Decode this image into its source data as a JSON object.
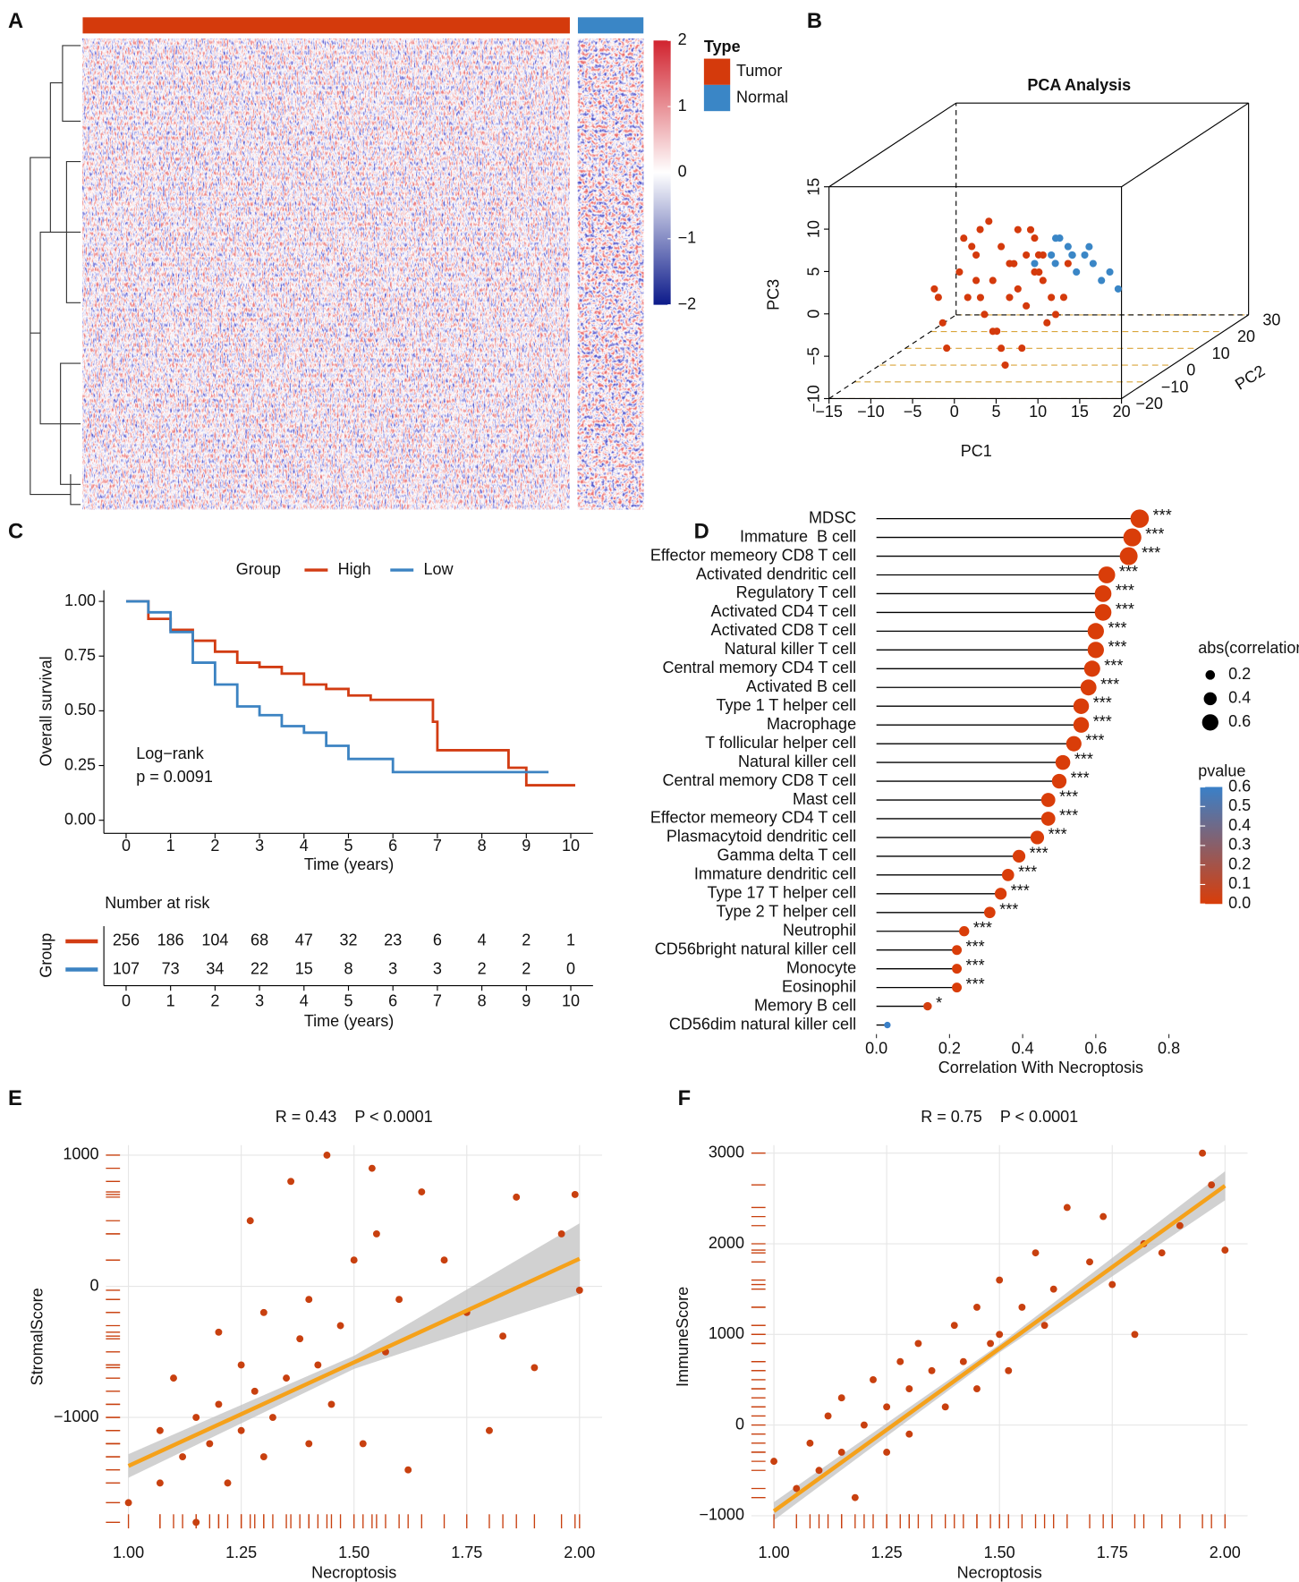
{
  "chart_data": [
    {
      "type": "heatmap",
      "panel": "A",
      "colorbar_lim": [
        -2,
        2
      ],
      "colorbar_ticks": [
        {
          "value": -2,
          "label": "−2"
        },
        {
          "value": -1,
          "label": "−1"
        },
        0,
        1,
        2
      ],
      "colors": [
        "#0c1a8a",
        "#ffffff",
        "#d1232f"
      ],
      "legend_title": "Type",
      "groups": [
        {
          "name": "Tumor",
          "color": "#d43a0c"
        },
        {
          "name": "Normal",
          "color": "#3a86c6"
        }
      ]
    },
    {
      "type": "scatter3d",
      "panel": "B",
      "title": "PCA Analysis",
      "xlabel": "PC1",
      "ylabel": "PC2",
      "zlabel": "PC3",
      "xlim": [
        -15,
        20
      ],
      "ylim": [
        -20,
        30
      ],
      "zlim": [
        -10,
        15
      ],
      "xticks": [
        {
          "value": -15,
          "label": "−15"
        },
        {
          "value": -10,
          "label": "−10"
        },
        {
          "value": -5,
          "label": "−5"
        },
        0,
        5,
        10,
        15,
        20
      ],
      "yticks": [
        {
          "value": -20,
          "label": "−20"
        },
        {
          "value": -10,
          "label": "−10"
        },
        0,
        10,
        20,
        30
      ],
      "zticks": [
        {
          "value": -10,
          "label": "−10"
        },
        {
          "value": -5,
          "label": "−5"
        },
        0,
        5,
        10,
        15
      ],
      "grid_color": "#d9a53a",
      "series": [
        {
          "name": "Tumor",
          "color": "#d43a0c",
          "x": [
            -3,
            -5,
            -1,
            0,
            -6,
            -2,
            1,
            -4,
            2,
            -7,
            -3,
            0,
            -8,
            3,
            -1,
            -5,
            2,
            4,
            -9,
            -2,
            5,
            -4,
            1,
            -6,
            6,
            -3,
            0,
            3,
            -7,
            2,
            -10,
            -1,
            4,
            -5,
            1,
            7,
            -2,
            0,
            -8,
            3
          ],
          "y": [
            5,
            5,
            5,
            5,
            5,
            5,
            5,
            5,
            5,
            5,
            5,
            10,
            0,
            5,
            0,
            10,
            0,
            5,
            5,
            5,
            0,
            0,
            10,
            10,
            5,
            0,
            5,
            10,
            0,
            5,
            5,
            5,
            0,
            5,
            5,
            0,
            10,
            0,
            10,
            5
          ],
          "z": [
            -1,
            2,
            1,
            -2,
            -3,
            3,
            -4,
            -5,
            0,
            0,
            -7,
            4,
            -2,
            2,
            -6,
            5,
            -8,
            -3,
            -6,
            -9,
            -5,
            4,
            -1,
            -4,
            1,
            6,
            5,
            -6,
            -8,
            4,
            -2,
            -3,
            3,
            -1,
            2,
            -2,
            0,
            -10,
            3,
            -1
          ]
        },
        {
          "name": "Normal",
          "color": "#3a86c6",
          "x": [
            4,
            6,
            5,
            7,
            8,
            3,
            9,
            6,
            10,
            5,
            7,
            11,
            2,
            8,
            12
          ],
          "y": [
            5,
            5,
            10,
            5,
            5,
            10,
            5,
            0,
            5,
            5,
            10,
            5,
            5,
            0,
            5
          ],
          "z": [
            2,
            3,
            1,
            0,
            2,
            3,
            1,
            2,
            -1,
            4,
            2,
            0,
            1,
            3,
            -2
          ]
        }
      ]
    },
    {
      "type": "km",
      "panel": "C",
      "xlabel": "Time (years)",
      "ylabel": "Overall survival",
      "legend_title": "Group",
      "xlim": [
        -0.5,
        10.5
      ],
      "ylim": [
        0,
        1
      ],
      "xticks": [
        0,
        1,
        2,
        3,
        4,
        5,
        6,
        7,
        8,
        9,
        10
      ],
      "yticks": [
        {
          "value": 0,
          "label": "0.00"
        },
        {
          "value": 0.25,
          "label": "0.25"
        },
        {
          "value": 0.5,
          "label": "0.50"
        },
        {
          "value": 0.75,
          "label": "0.75"
        },
        {
          "value": 1,
          "label": "1.00"
        }
      ],
      "annotation": [
        "Log−rank",
        "p = 0.0091"
      ],
      "risk_title": "Number at risk",
      "risk_ylabel": "Group",
      "risk_xlabel": "Time (years)",
      "series": [
        {
          "name": "High",
          "color": "#d23c13",
          "x": [
            0,
            0.5,
            1,
            1.5,
            2,
            2.5,
            3,
            3.5,
            4,
            4.5,
            5,
            5.5,
            6.9,
            7,
            8.6,
            9,
            10.1
          ],
          "values": [
            1,
            0.92,
            0.87,
            0.82,
            0.77,
            0.72,
            0.7,
            0.67,
            0.62,
            0.6,
            0.57,
            0.55,
            0.45,
            0.32,
            0.24,
            0.16,
            0.16
          ],
          "at_risk": [
            256,
            186,
            104,
            68,
            47,
            32,
            23,
            6,
            4,
            2,
            1
          ]
        },
        {
          "name": "Low",
          "color": "#3c83c2",
          "x": [
            0,
            0.5,
            1,
            1.5,
            2,
            2.5,
            3,
            3.5,
            4,
            4.5,
            5,
            6,
            9.5
          ],
          "values": [
            1,
            0.95,
            0.86,
            0.72,
            0.62,
            0.52,
            0.48,
            0.43,
            0.4,
            0.34,
            0.28,
            0.22,
            0.22
          ],
          "at_risk": [
            107,
            73,
            34,
            22,
            15,
            8,
            3,
            3,
            2,
            2,
            0
          ]
        }
      ]
    },
    {
      "type": "lollipop",
      "panel": "D",
      "xlabel": "Correlation With Necroptosis",
      "xlim": [
        0,
        0.8
      ],
      "xticks": [
        {
          "value": 0,
          "label": "0.0"
        },
        0.2,
        0.4,
        0.6,
        0.8
      ],
      "categories": [
        "MDSC",
        "Immature  B cell",
        "Effector memeory CD8 T cell",
        "Activated dendritic cell",
        "Regulatory T cell",
        "Activated CD4 T cell",
        "Activated CD8 T cell",
        "Natural killer T cell",
        "Central memory CD4 T cell",
        "Activated B cell",
        "Type 1 T helper cell",
        "Macrophage",
        "T follicular helper cell",
        "Natural killer cell",
        "Central memory CD8 T cell",
        "Mast cell",
        "Effector memeory CD4 T cell",
        "Plasmacytoid dendritic cell",
        "Gamma delta T cell",
        "Immature dendritic cell",
        "Type 17 T helper cell",
        "Type 2 T helper cell",
        "Neutrophil",
        "CD56bright natural killer cell",
        "Monocyte",
        "Eosinophil",
        "Memory B cell",
        "CD56dim natural killer cell"
      ],
      "values": [
        0.72,
        0.7,
        0.69,
        0.63,
        0.62,
        0.62,
        0.6,
        0.6,
        0.59,
        0.58,
        0.56,
        0.56,
        0.54,
        0.51,
        0.5,
        0.47,
        0.47,
        0.44,
        0.39,
        0.36,
        0.34,
        0.31,
        0.24,
        0.22,
        0.22,
        0.22,
        0.14,
        0.03
      ],
      "pvalues": [
        0,
        0,
        0,
        0,
        0,
        0,
        0,
        0,
        0,
        0,
        0,
        0,
        0,
        0,
        0,
        0,
        0,
        0,
        0,
        0,
        0,
        0,
        0,
        0,
        0,
        0,
        0.02,
        0.6
      ],
      "significance": [
        "***",
        "***",
        "***",
        "***",
        "***",
        "***",
        "***",
        "***",
        "***",
        "***",
        "***",
        "***",
        "***",
        "***",
        "***",
        "***",
        "***",
        "***",
        "***",
        "***",
        "***",
        "***",
        "***",
        "***",
        "***",
        "***",
        "*",
        null
      ],
      "size_legend_title": "abs(correlation)",
      "size_legend": [
        0.2,
        0.4,
        0.6
      ],
      "color_legend_title": "pvalue",
      "color_lim": [
        0,
        0.6
      ],
      "color_ticks": [
        {
          "value": 0,
          "label": "0.0"
        },
        0.1,
        0.2,
        0.3,
        0.4,
        0.5,
        0.6
      ],
      "color_low": "#d93d09",
      "color_high": "#3a80c8"
    },
    {
      "type": "scatter",
      "panel": "E",
      "title": "R = 0.43    P < 0.0001",
      "xlabel": "Necroptosis",
      "ylabel": "StromalScore",
      "xlim": [
        0.95,
        2.05
      ],
      "ylim": [
        -1846,
        1077
      ],
      "xticks": [
        {
          "value": 1,
          "label": "1.00"
        },
        1.25,
        {
          "value": 1.5,
          "label": "1.50"
        },
        1.75,
        {
          "value": 2,
          "label": "2.00"
        }
      ],
      "yticks": [
        {
          "value": -1000,
          "label": "−1000"
        },
        0,
        1000
      ],
      "grid": true,
      "point_color": "#c8400f",
      "line_color": "#f5a11a",
      "band_color": "#bdbdbd",
      "x": [
        1.0,
        1.07,
        1.07,
        1.1,
        1.12,
        1.15,
        1.15,
        1.18,
        1.2,
        1.2,
        1.22,
        1.25,
        1.25,
        1.27,
        1.28,
        1.3,
        1.3,
        1.32,
        1.35,
        1.36,
        1.38,
        1.4,
        1.4,
        1.42,
        1.44,
        1.45,
        1.47,
        1.5,
        1.52,
        1.54,
        1.55,
        1.57,
        1.6,
        1.62,
        1.65,
        1.7,
        1.75,
        1.8,
        1.83,
        1.86,
        1.9,
        1.96,
        1.99,
        2.0
      ],
      "values": [
        -1650,
        -1100,
        -1500,
        -700,
        -1300,
        -1000,
        -1800,
        -1200,
        -900,
        -350,
        -1500,
        -1100,
        -600,
        500,
        -800,
        -1300,
        -200,
        -1000,
        -700,
        800,
        -400,
        -1200,
        -100,
        -600,
        1000,
        -900,
        -300,
        200,
        -1200,
        900,
        400,
        -500,
        -100,
        -1400,
        720,
        200,
        -200,
        -1100,
        -380,
        680,
        -620,
        400,
        700,
        -30
      ],
      "fit": {
        "x": [
          1,
          1.5,
          2
        ],
        "values": [
          -1370,
          -580,
          210
        ],
        "lower": [
          -1460,
          -630,
          -60
        ],
        "upper": [
          -1280,
          -530,
          480
        ]
      }
    },
    {
      "type": "scatter",
      "panel": "F",
      "title": "R = 0.75    P < 0.0001",
      "xlabel": "Necroptosis",
      "ylabel": "ImmuneScore",
      "xlim": [
        0.95,
        2.05
      ],
      "ylim": [
        -1140,
        3089
      ],
      "xticks": [
        {
          "value": 1,
          "label": "1.00"
        },
        1.25,
        {
          "value": 1.5,
          "label": "1.50"
        },
        1.75,
        {
          "value": 2,
          "label": "2.00"
        }
      ],
      "yticks": [
        {
          "value": -1000,
          "label": "−1000"
        },
        0,
        1000,
        2000,
        3000
      ],
      "grid": true,
      "point_color": "#c8400f",
      "line_color": "#f5a11a",
      "band_color": "#bdbdbd",
      "x": [
        1.0,
        1.05,
        1.08,
        1.1,
        1.12,
        1.15,
        1.15,
        1.18,
        1.2,
        1.22,
        1.25,
        1.25,
        1.28,
        1.3,
        1.3,
        1.32,
        1.35,
        1.38,
        1.4,
        1.42,
        1.45,
        1.45,
        1.48,
        1.5,
        1.5,
        1.52,
        1.55,
        1.58,
        1.6,
        1.62,
        1.65,
        1.7,
        1.73,
        1.75,
        1.8,
        1.82,
        1.86,
        1.9,
        1.95,
        1.97,
        2.0
      ],
      "values": [
        -400,
        -700,
        -200,
        -500,
        100,
        -300,
        300,
        -800,
        0,
        500,
        200,
        -300,
        700,
        400,
        -100,
        900,
        600,
        200,
        1100,
        700,
        1300,
        400,
        900,
        1600,
        1000,
        600,
        1300,
        1900,
        1100,
        1500,
        2400,
        1800,
        2300,
        1550,
        1000,
        2000,
        1900,
        2200,
        3000,
        2650,
        1930
      ],
      "fit": {
        "x": [
          1,
          1.5,
          2
        ],
        "values": [
          -950,
          845,
          2640
        ],
        "lower": [
          -1050,
          800,
          2480
        ],
        "upper": [
          -850,
          890,
          2800
        ]
      }
    }
  ]
}
